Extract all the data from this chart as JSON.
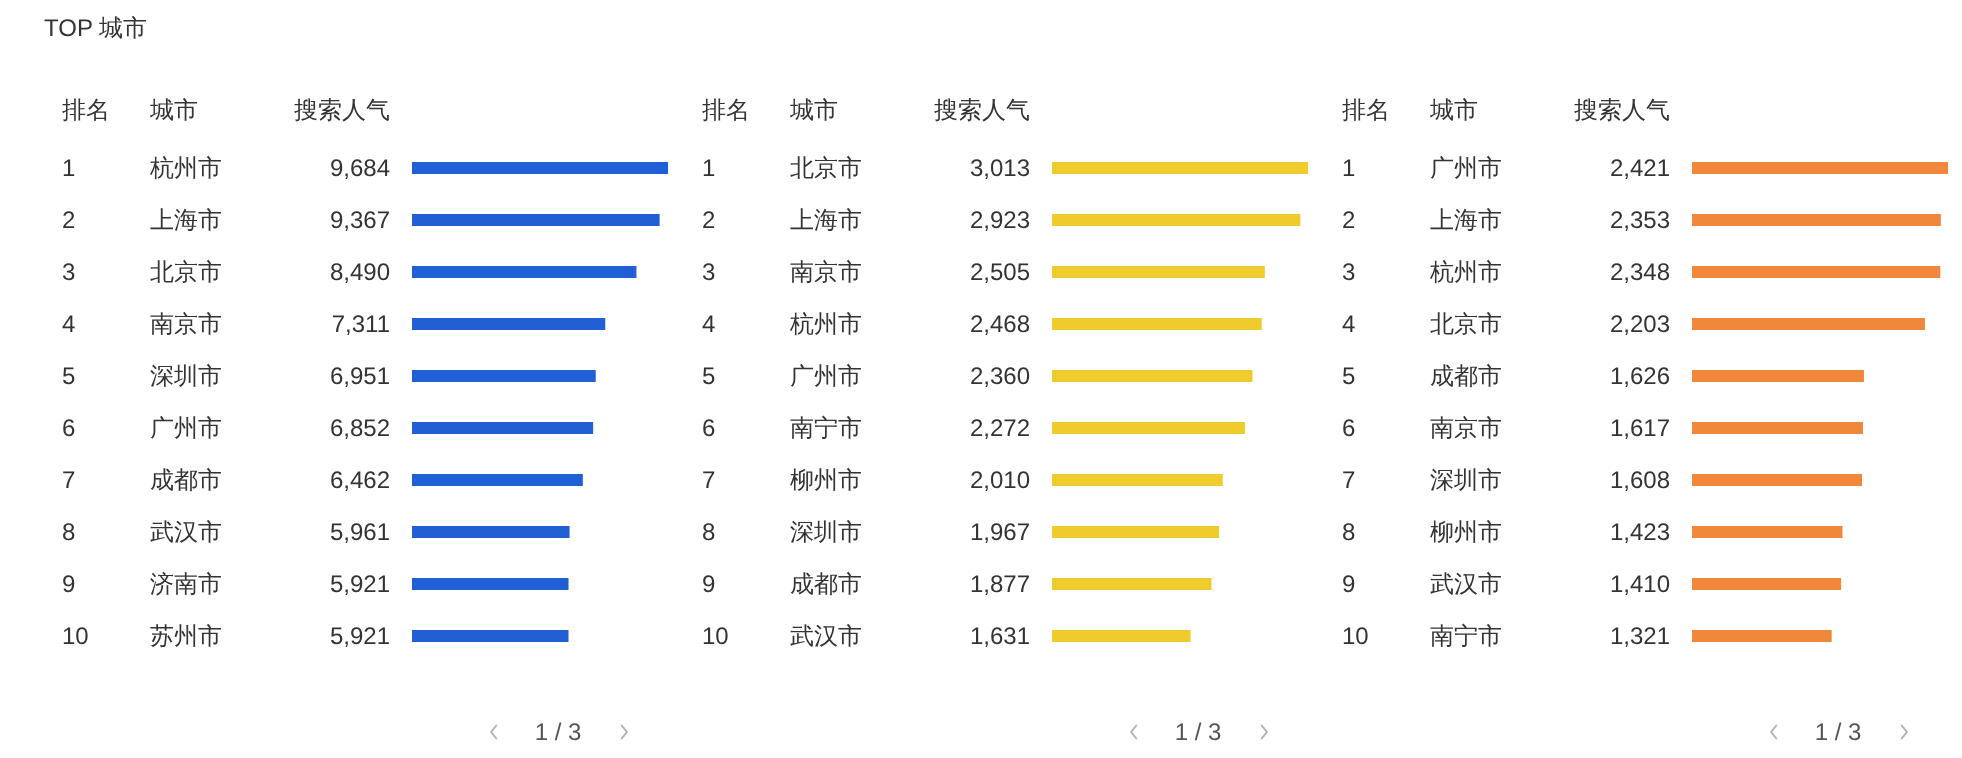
{
  "chart_data": [
    {
      "type": "bar",
      "orientation": "horizontal",
      "title": "TOP 城市",
      "categories": [
        "杭州市",
        "上海市",
        "北京市",
        "南京市",
        "深圳市",
        "广州市",
        "成都市",
        "武汉市",
        "济南市",
        "苏州市"
      ],
      "values": [
        9684,
        9367,
        8490,
        7311,
        6951,
        6852,
        6462,
        5961,
        5921,
        5921
      ],
      "value_labels": [
        "9,684",
        "9,367",
        "8,490",
        "7,311",
        "6,951",
        "6,852",
        "6,462",
        "5,961",
        "5,921",
        "5,921"
      ],
      "color": "#2160d4",
      "annotations": [
        "排名",
        "城市",
        "搜索人气",
        "1",
        "2",
        "3",
        "4",
        "5",
        "6",
        "7",
        "8",
        "9",
        "10",
        "1 / 3"
      ]
    },
    {
      "type": "bar",
      "orientation": "horizontal",
      "categories": [
        "北京市",
        "上海市",
        "南京市",
        "杭州市",
        "广州市",
        "南宁市",
        "柳州市",
        "深圳市",
        "成都市",
        "武汉市"
      ],
      "values": [
        3013,
        2923,
        2505,
        2468,
        2360,
        2272,
        2010,
        1967,
        1877,
        1631
      ],
      "value_labels": [
        "3,013",
        "2,923",
        "2,505",
        "2,468",
        "2,360",
        "2,272",
        "2,010",
        "1,967",
        "1,877",
        "1,631"
      ],
      "color": "#f0cb2c",
      "annotations": [
        "排名",
        "城市",
        "搜索人气",
        "1",
        "2",
        "3",
        "4",
        "5",
        "6",
        "7",
        "8",
        "9",
        "10",
        "1 / 3"
      ]
    },
    {
      "type": "bar",
      "orientation": "horizontal",
      "categories": [
        "广州市",
        "上海市",
        "杭州市",
        "北京市",
        "成都市",
        "南京市",
        "深圳市",
        "柳州市",
        "武汉市",
        "南宁市"
      ],
      "values": [
        2421,
        2353,
        2348,
        2203,
        1626,
        1617,
        1608,
        1423,
        1410,
        1321
      ],
      "value_labels": [
        "2,421",
        "2,353",
        "2,348",
        "2,203",
        "1,626",
        "1,617",
        "1,608",
        "1,423",
        "1,410",
        "1,321"
      ],
      "color": "#f0883b",
      "annotations": [
        "排名",
        "城市",
        "搜索人气",
        "1",
        "2",
        "3",
        "4",
        "5",
        "6",
        "7",
        "8",
        "9",
        "10",
        "1 / 3"
      ]
    }
  ]
}
